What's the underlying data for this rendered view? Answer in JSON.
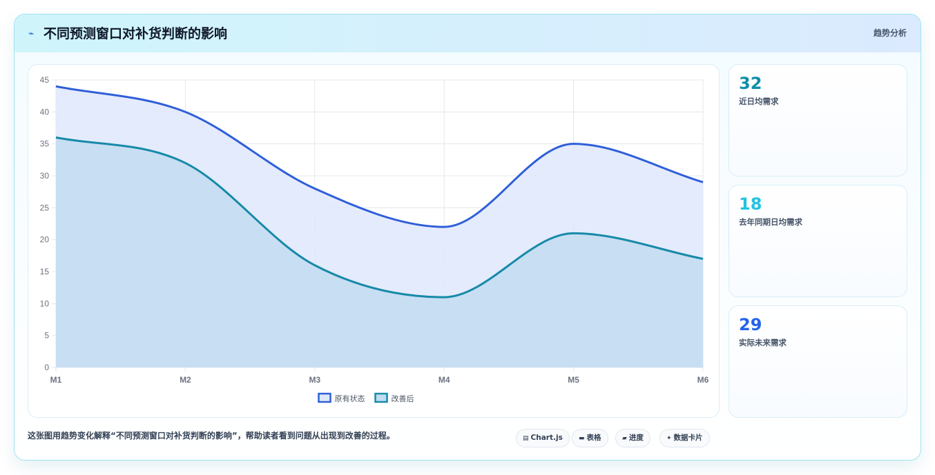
{
  "header": {
    "title": "不同预测窗口对补货判断的影响",
    "title_icon": "lightning-icon",
    "tag": "趋势分析"
  },
  "chart_data": {
    "type": "area",
    "categories": [
      "M1",
      "M2",
      "M3",
      "M4",
      "M5",
      "M6"
    ],
    "series": [
      {
        "name": "原有状态",
        "values": [
          44,
          40,
          28,
          22,
          35,
          29
        ],
        "color": "#2f5fd8",
        "fill": "#dfe8fb"
      },
      {
        "name": "改善后",
        "values": [
          36,
          32,
          16,
          11,
          21,
          17
        ],
        "color": "#168aa8",
        "fill": "#c3dcf1"
      }
    ],
    "ylim": [
      0,
      45
    ],
    "yticks": [
      0,
      5,
      10,
      15,
      20,
      25,
      30,
      35,
      40,
      45
    ],
    "grid": true,
    "legend_position": "bottom"
  },
  "stats": [
    {
      "value": "32",
      "label": "近日均需求",
      "color": "#0e8fa8"
    },
    {
      "value": "18",
      "label": "去年同期日均需求",
      "color": "#22c3e0"
    },
    {
      "value": "29",
      "label": "实际未来需求",
      "color": "#2563eb"
    }
  ],
  "footer": {
    "caption": "这张图用趋势变化解释“不同预测窗口对补货判断的影响”，帮助读者看到问题从出现到改善的过程。",
    "chips": [
      {
        "icon": "▤",
        "label": "Chart.js"
      },
      {
        "icon": "▬",
        "label": "表格"
      },
      {
        "icon": "▰",
        "label": "进度"
      },
      {
        "icon": "✦",
        "label": "数据卡片"
      }
    ]
  }
}
